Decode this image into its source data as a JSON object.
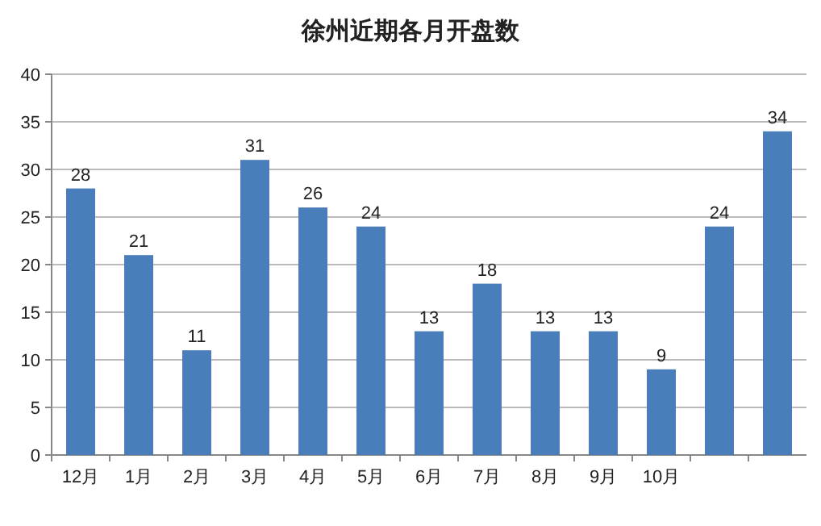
{
  "chart_data": {
    "type": "bar",
    "title": "徐州近期各月开盘数",
    "categories": [
      "12月",
      "1月",
      "2月",
      "3月",
      "4月",
      "5月",
      "6月",
      "7月",
      "8月",
      "9月",
      "10月",
      null,
      null
    ],
    "values": [
      28,
      21,
      11,
      31,
      26,
      24,
      13,
      18,
      13,
      13,
      9,
      24,
      34
    ],
    "color": "#4a7ebb",
    "ylim": [
      0,
      40
    ],
    "yticks": [
      0,
      5,
      10,
      15,
      20,
      25,
      30,
      35,
      40
    ],
    "grid": "y",
    "data_labels": true
  }
}
